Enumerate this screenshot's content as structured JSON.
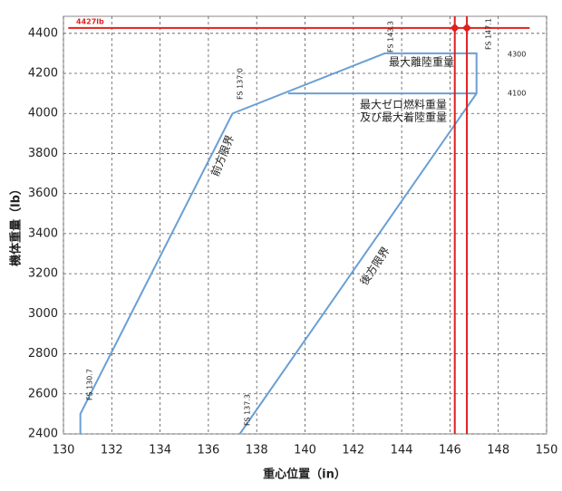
{
  "chart_data": {
    "type": "line",
    "x_label": "重心位置（in）",
    "y_label": "機体重量（lb）",
    "xlim": [
      130,
      150
    ],
    "xticks": [
      130,
      132,
      134,
      136,
      138,
      140,
      142,
      144,
      146,
      148,
      150
    ],
    "ylim": [
      2400,
      4485
    ],
    "yticks": [
      2400,
      2600,
      2800,
      3000,
      3200,
      3400,
      3600,
      3800,
      4000,
      4200,
      4400
    ],
    "grid": true,
    "series": [
      {
        "color": "#6a9fd4",
        "x": [
          130.7,
          130.7,
          137.0,
          143.3,
          147.1,
          147.1,
          137.3
        ],
        "values": [
          2400,
          2500,
          4000,
          4300,
          4300,
          4100,
          2400
        ]
      },
      {
        "color": "#6a9fd4",
        "x": [
          139.3,
          147.1
        ],
        "values": [
          4100,
          4100
        ]
      },
      {
        "color": "#e02020",
        "x": [
          130.2,
          149.3
        ],
        "values": [
          4427,
          4427
        ]
      },
      {
        "color": "#e02020",
        "x": [
          146.2,
          146.2
        ],
        "values": [
          2400,
          4485
        ]
      },
      {
        "color": "#e02020",
        "x": [
          146.7,
          146.7
        ],
        "values": [
          2400,
          4485
        ]
      },
      {
        "color": "#e02020",
        "x": [
          146.2,
          146.7
        ],
        "values": [
          4427,
          4427
        ],
        "markers": true
      }
    ],
    "annotations": [
      "4427lb",
      "FS 130.7",
      "FS 137.0",
      "FS 143.3",
      "FS 147.1",
      "FS 137.3",
      "4300",
      "4100",
      "最大離陸重量",
      "最大ゼロ燃料重量",
      "及び最大着陸重量",
      "前方限界",
      "後方限界"
    ]
  }
}
